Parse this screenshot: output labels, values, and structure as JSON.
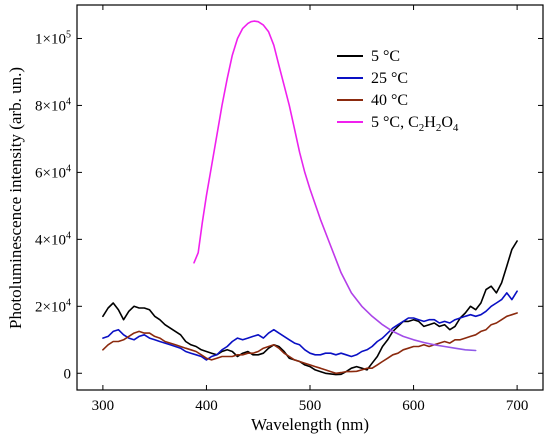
{
  "chart_data": {
    "type": "line",
    "title": "",
    "xlabel": "Wavelength (nm)",
    "ylabel": "Photoluminescence intensity (arb. un.)",
    "xlim": [
      275,
      725
    ],
    "ylim": [
      -5000,
      110000
    ],
    "grid": false,
    "legend_position": "top-right",
    "x_ticks": [
      300,
      400,
      500,
      600,
      700
    ],
    "x_tick_labels": [
      "300",
      "400",
      "500",
      "600",
      "700"
    ],
    "y_ticks": [
      0,
      20000,
      40000,
      60000,
      80000,
      100000
    ],
    "y_tick_labels": [
      {
        "mantissa": "0",
        "exp": ""
      },
      {
        "mantissa": "2×10",
        "exp": "4"
      },
      {
        "mantissa": "4×10",
        "exp": "4"
      },
      {
        "mantissa": "6×10",
        "exp": "4"
      },
      {
        "mantissa": "8×10",
        "exp": "4"
      },
      {
        "mantissa": "1×10",
        "exp": "5"
      }
    ],
    "series": [
      {
        "name": "5 °C",
        "legend_parts": [
          {
            "t": "5 °C"
          }
        ],
        "color": "#000000",
        "x": [
          300,
          305,
          310,
          315,
          320,
          325,
          330,
          335,
          340,
          345,
          350,
          355,
          360,
          365,
          370,
          375,
          380,
          385,
          390,
          395,
          400,
          405,
          410,
          415,
          420,
          425,
          430,
          435,
          440,
          445,
          450,
          455,
          460,
          465,
          470,
          475,
          480,
          485,
          490,
          495,
          500,
          505,
          510,
          515,
          520,
          525,
          530,
          535,
          540,
          545,
          550,
          555,
          560,
          565,
          570,
          575,
          580,
          585,
          590,
          595,
          600,
          605,
          610,
          615,
          620,
          625,
          630,
          635,
          640,
          645,
          650,
          655,
          660,
          665,
          670,
          675,
          680,
          685,
          690,
          695,
          700
        ],
        "y": [
          17000,
          19500,
          21000,
          19000,
          16000,
          18500,
          20000,
          19500,
          19500,
          19000,
          17000,
          16000,
          14500,
          13500,
          12500,
          11500,
          9500,
          8500,
          8000,
          7000,
          6500,
          6000,
          5500,
          6500,
          7000,
          6500,
          5000,
          6000,
          6500,
          5500,
          5500,
          6000,
          7500,
          8500,
          8000,
          6500,
          4500,
          4000,
          3500,
          2500,
          2000,
          1000,
          500,
          0,
          -200,
          -400,
          -300,
          500,
          1500,
          2000,
          1500,
          1000,
          3000,
          5000,
          8000,
          10000,
          12500,
          14000,
          15500,
          15500,
          16000,
          15500,
          14000,
          14500,
          15000,
          14000,
          14500,
          13000,
          14000,
          16500,
          18000,
          20000,
          19000,
          21000,
          25000,
          26000,
          24000,
          27000,
          32000,
          37000,
          39500
        ]
      },
      {
        "name": "25 °C",
        "legend_parts": [
          {
            "t": "25 °C"
          }
        ],
        "color": "#0a10c4",
        "x": [
          300,
          305,
          310,
          315,
          320,
          325,
          330,
          335,
          340,
          345,
          350,
          355,
          360,
          365,
          370,
          375,
          380,
          385,
          390,
          395,
          400,
          405,
          410,
          415,
          420,
          425,
          430,
          435,
          440,
          445,
          450,
          455,
          460,
          465,
          470,
          475,
          480,
          485,
          490,
          495,
          500,
          505,
          510,
          515,
          520,
          525,
          530,
          535,
          540,
          545,
          550,
          555,
          560,
          565,
          570,
          575,
          580,
          585,
          590,
          595,
          600,
          605,
          610,
          615,
          620,
          625,
          630,
          635,
          640,
          645,
          650,
          655,
          660,
          665,
          670,
          675,
          680,
          685,
          690,
          695,
          700
        ],
        "y": [
          10500,
          11000,
          12500,
          13000,
          11500,
          10500,
          10000,
          11000,
          11500,
          10500,
          10000,
          9500,
          9000,
          8500,
          8000,
          7500,
          6500,
          6000,
          5500,
          5000,
          4000,
          5000,
          5500,
          7000,
          8000,
          9500,
          10500,
          10000,
          10500,
          11000,
          11500,
          10500,
          12000,
          13000,
          12000,
          11000,
          10000,
          9000,
          8500,
          7000,
          6000,
          5500,
          5500,
          6000,
          6000,
          5500,
          6000,
          5500,
          5000,
          5500,
          6500,
          7000,
          8000,
          9500,
          10500,
          12000,
          13500,
          14500,
          15500,
          16500,
          16500,
          16000,
          15500,
          16000,
          16000,
          15000,
          15500,
          15000,
          16000,
          16500,
          17000,
          17500,
          17000,
          17500,
          18500,
          20000,
          21000,
          22000,
          24000,
          22000,
          24500
        ]
      },
      {
        "name": "40 °C",
        "legend_parts": [
          {
            "t": "40 °C"
          }
        ],
        "color": "#8b2a0e",
        "x": [
          300,
          305,
          310,
          315,
          320,
          325,
          330,
          335,
          340,
          345,
          350,
          355,
          360,
          365,
          370,
          375,
          380,
          385,
          390,
          395,
          400,
          405,
          410,
          415,
          420,
          425,
          430,
          435,
          440,
          445,
          450,
          455,
          460,
          465,
          470,
          475,
          480,
          485,
          490,
          495,
          500,
          505,
          510,
          515,
          520,
          525,
          530,
          535,
          540,
          545,
          550,
          555,
          560,
          565,
          570,
          575,
          580,
          585,
          590,
          595,
          600,
          605,
          610,
          615,
          620,
          625,
          630,
          635,
          640,
          645,
          650,
          655,
          660,
          665,
          670,
          675,
          680,
          685,
          690,
          695,
          700
        ],
        "y": [
          7000,
          8500,
          9500,
          9500,
          10000,
          11000,
          12000,
          12500,
          12000,
          12000,
          11000,
          10500,
          9500,
          9000,
          8500,
          8000,
          7500,
          7000,
          6500,
          5500,
          4500,
          4000,
          4500,
          5000,
          5000,
          5000,
          5500,
          5500,
          6000,
          6000,
          6500,
          7500,
          8000,
          8500,
          7500,
          6000,
          5000,
          4000,
          3500,
          3000,
          2500,
          2000,
          1500,
          1000,
          500,
          0,
          200,
          500,
          500,
          600,
          1000,
          1500,
          1500,
          2500,
          3500,
          4500,
          5500,
          6000,
          7000,
          7500,
          8000,
          8000,
          8500,
          8000,
          8500,
          9000,
          9500,
          9000,
          10000,
          10000,
          10500,
          11000,
          11500,
          12500,
          13000,
          14500,
          15000,
          16000,
          17000,
          17500,
          18000
        ]
      },
      {
        "name": "5 °C, C2H2O4",
        "legend_parts": [
          {
            "t": "5 °C, C"
          },
          {
            "t": "2",
            "sub": true
          },
          {
            "t": "H"
          },
          {
            "t": "2",
            "sub": true
          },
          {
            "t": "O"
          },
          {
            "t": "4",
            "sub": true
          }
        ],
        "color": "#f020ee",
        "gradient_end": "#8e5ae8",
        "x": [
          388,
          392,
          396,
          400,
          405,
          410,
          415,
          420,
          425,
          430,
          435,
          440,
          443,
          446,
          450,
          455,
          460,
          465,
          470,
          475,
          480,
          485,
          490,
          495,
          500,
          510,
          520,
          530,
          540,
          550,
          560,
          570,
          580,
          590,
          600,
          610,
          620,
          630,
          640,
          650,
          660
        ],
        "y": [
          33000,
          36000,
          45000,
          53000,
          62000,
          71000,
          80000,
          88000,
          95000,
          100000,
          103000,
          104500,
          105000,
          105200,
          105000,
          104000,
          102000,
          98000,
          92000,
          86000,
          80000,
          73000,
          66000,
          60000,
          55000,
          46000,
          38000,
          30000,
          24000,
          20000,
          17000,
          14500,
          12500,
          11000,
          10000,
          9200,
          8500,
          8000,
          7500,
          7000,
          6800
        ]
      }
    ]
  }
}
